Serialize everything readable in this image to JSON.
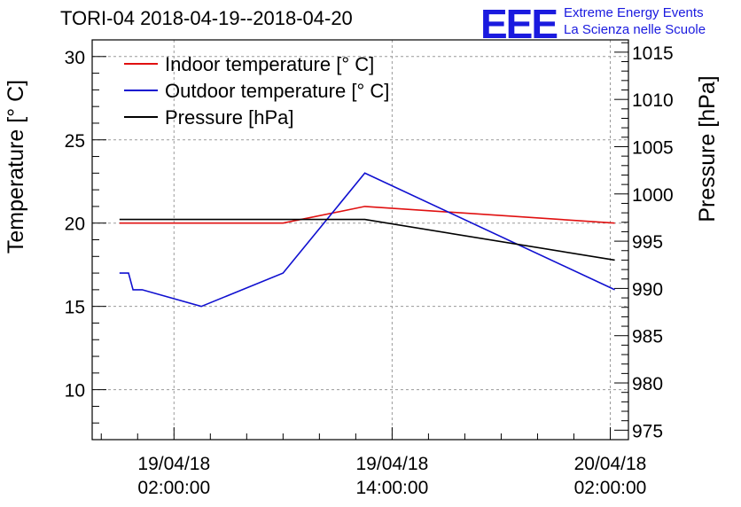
{
  "header": {
    "title": "TORI-04 2018-04-19--2018-04-20",
    "logo_mark": "EEE",
    "logo_line1": "Extreme Energy Events",
    "logo_line2": "La Scienza nelle Scuole",
    "logo_color": "#1a1adf"
  },
  "chart_data": {
    "type": "line",
    "title": "TORI-04 2018-04-19--2018-04-20",
    "ylabel": "Temperature [° C]",
    "y2label": "Pressure [hPa]",
    "ylim": [
      7,
      31
    ],
    "y2lim": [
      974,
      1016.3
    ],
    "yticks": [
      "10",
      "15",
      "20",
      "25",
      "30"
    ],
    "y2ticks": [
      "975",
      "980",
      "985",
      "990",
      "995",
      "1000",
      "1005",
      "1010",
      "1015"
    ],
    "xlim": [
      "2018-04-18 21:30",
      "2018-04-20 03:00"
    ],
    "xticks": [
      {
        "x": "2018-04-19 02:00",
        "line1": "19/04/18",
        "line2": "02:00:00"
      },
      {
        "x": "2018-04-19 14:00",
        "line1": "19/04/18",
        "line2": "14:00:00"
      },
      {
        "x": "2018-04-20 02:00",
        "line1": "20/04/18",
        "line2": "02:00:00"
      }
    ],
    "grid": true,
    "legend_position": "top-left",
    "series": [
      {
        "name": "Indoor temperature [° C]",
        "color": "#e01010",
        "axis": "left",
        "points": [
          {
            "x": "2018-04-18 23:00",
            "y": 20
          },
          {
            "x": "2018-04-19 08:00",
            "y": 20
          },
          {
            "x": "2018-04-19 12:30",
            "y": 21
          },
          {
            "x": "2018-04-20 02:15",
            "y": 20
          }
        ]
      },
      {
        "name": "Outdoor temperature [° C]",
        "color": "#1010d0",
        "axis": "left",
        "points": [
          {
            "x": "2018-04-18 23:00",
            "y": 17
          },
          {
            "x": "2018-04-18 23:30",
            "y": 17
          },
          {
            "x": "2018-04-18 23:45",
            "y": 16
          },
          {
            "x": "2018-04-19 00:15",
            "y": 16
          },
          {
            "x": "2018-04-19 03:30",
            "y": 15
          },
          {
            "x": "2018-04-19 08:00",
            "y": 17
          },
          {
            "x": "2018-04-19 12:30",
            "y": 23
          },
          {
            "x": "2018-04-20 02:15",
            "y": 16
          }
        ]
      },
      {
        "name": "Pressure [hPa]",
        "color": "#000000",
        "axis": "right",
        "points": [
          {
            "x": "2018-04-18 23:00",
            "y": 997.3
          },
          {
            "x": "2018-04-19 12:30",
            "y": 997.3
          },
          {
            "x": "2018-04-20 02:15",
            "y": 993.0
          }
        ]
      }
    ]
  }
}
